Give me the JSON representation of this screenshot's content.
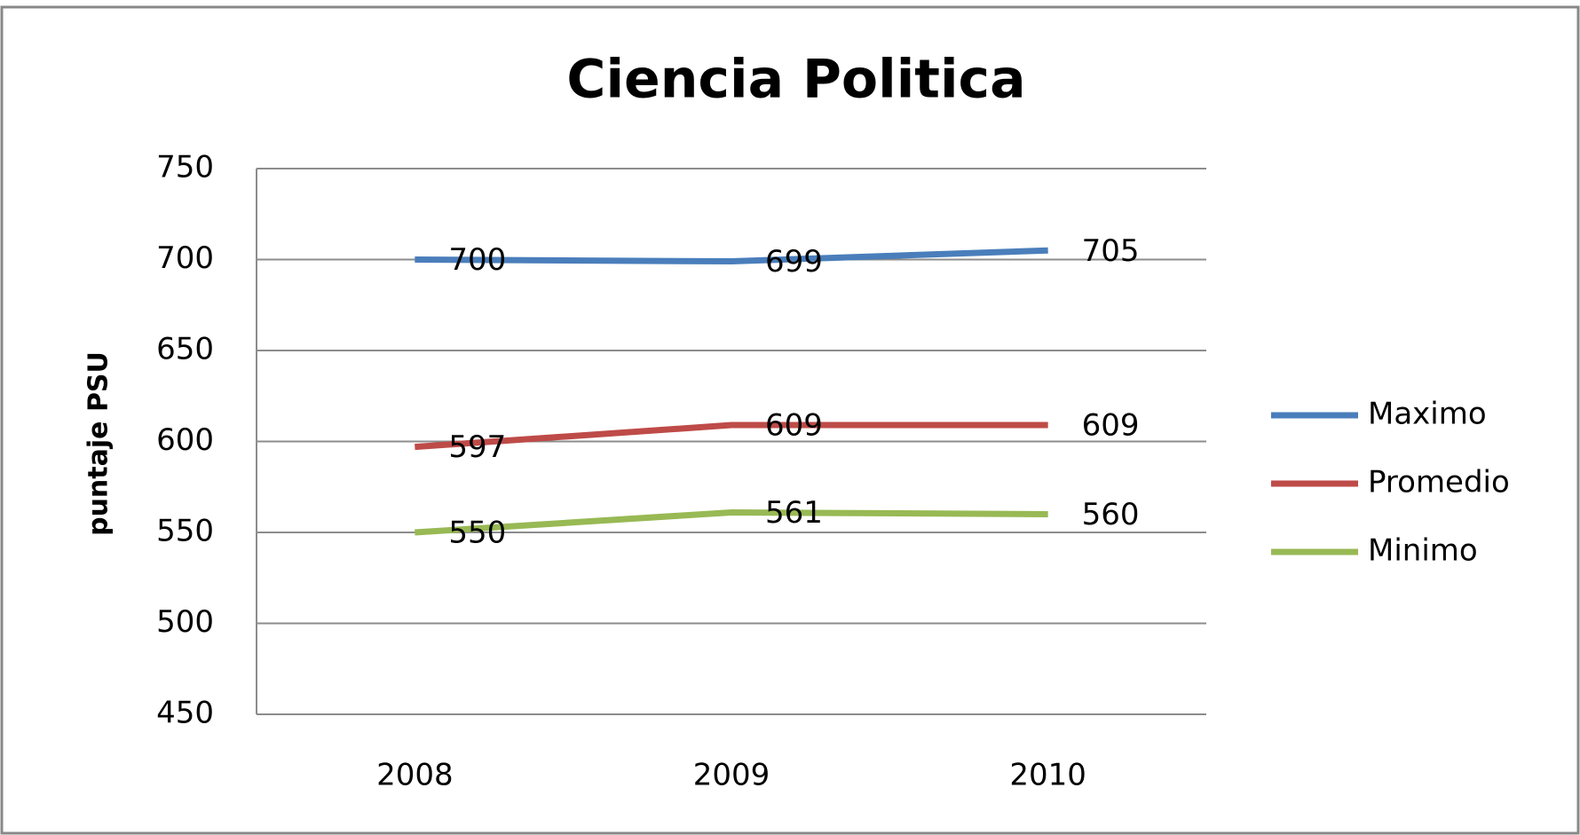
{
  "chart_data": {
    "type": "line",
    "title": "Ciencia Politica",
    "y_label": "puntaje PSU",
    "categories": [
      "2008",
      "2009",
      "2010"
    ],
    "series": [
      {
        "name": "Maximo",
        "color": "#4a7ebb",
        "values": [
          700,
          699,
          705
        ]
      },
      {
        "name": "Promedio",
        "color": "#be4b48",
        "values": [
          597,
          609,
          609
        ]
      },
      {
        "name": "Minimo",
        "color": "#98b954",
        "values": [
          550,
          561,
          560
        ]
      }
    ],
    "ylim": [
      450,
      750
    ],
    "yticks": [
      450,
      500,
      550,
      600,
      650,
      700,
      750
    ],
    "grid": true,
    "legend": "right"
  }
}
